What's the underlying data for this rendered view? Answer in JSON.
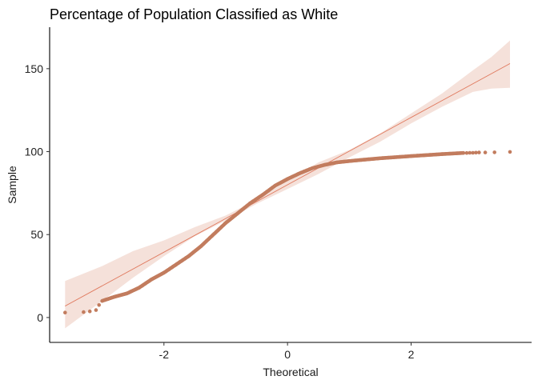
{
  "chart_data": {
    "type": "scatter",
    "title": "Percentage of Population Classified as White",
    "xlabel": "Theoretical",
    "ylabel": "Sample",
    "xlim": [
      -3.85,
      3.95
    ],
    "ylim": [
      -15,
      175
    ],
    "x_ticks": [
      -2,
      0,
      2
    ],
    "x_tick_labels": [
      "-2",
      "0",
      "2"
    ],
    "y_ticks": [
      0,
      50,
      100,
      150
    ],
    "y_tick_labels": [
      "0",
      "50",
      "100",
      "150"
    ],
    "grid": false,
    "legend": "none",
    "point_color": "#C27C5E",
    "line_color": "#E07A5F",
    "band_color": "#F5E1DA",
    "reference_line": {
      "intercept": 80,
      "slope": 20.3
    },
    "confidence_band": {
      "x": [
        -3.6,
        -3.0,
        -2.5,
        -2.0,
        -1.5,
        -1.0,
        -0.5,
        0.0,
        0.5,
        1.0,
        1.5,
        2.0,
        2.5,
        3.0,
        3.3,
        3.6
      ],
      "lower": [
        -6.5,
        10,
        24,
        37,
        49,
        58.5,
        68.5,
        77.5,
        86.5,
        96.5,
        106,
        117,
        127,
        136,
        138,
        138.5
      ],
      "upper": [
        22,
        31,
        40,
        46.5,
        54.5,
        61.5,
        71,
        82.5,
        93.5,
        101,
        111,
        123,
        135,
        149,
        157,
        167
      ]
    },
    "quantile_curve": {
      "x": [
        -3.0,
        -2.8,
        -2.6,
        -2.4,
        -2.2,
        -2.0,
        -1.8,
        -1.6,
        -1.4,
        -1.2,
        -1.0,
        -0.8,
        -0.6,
        -0.4,
        -0.2,
        0.0,
        0.2,
        0.4,
        0.6,
        0.8,
        1.0,
        1.2,
        1.5,
        2.0,
        2.5,
        2.85
      ],
      "y": [
        10,
        12.5,
        14.5,
        18,
        23,
        27,
        32,
        37,
        43,
        50,
        57,
        63,
        69,
        74,
        79.5,
        83.5,
        87,
        90,
        92,
        93.5,
        94.3,
        95,
        96,
        97.3,
        98.5,
        99.2
      ]
    },
    "tail_points": [
      {
        "x": -3.6,
        "y": 3
      },
      {
        "x": -3.3,
        "y": 3.3
      },
      {
        "x": -3.2,
        "y": 3.7
      },
      {
        "x": -3.1,
        "y": 4.5
      },
      {
        "x": -3.05,
        "y": 7.5
      },
      {
        "x": 2.9,
        "y": 99.2
      },
      {
        "x": 2.95,
        "y": 99.3
      },
      {
        "x": 3.0,
        "y": 99.3
      },
      {
        "x": 3.05,
        "y": 99.4
      },
      {
        "x": 3.1,
        "y": 99.5
      },
      {
        "x": 3.2,
        "y": 99.5
      },
      {
        "x": 3.35,
        "y": 99.6
      },
      {
        "x": 3.6,
        "y": 99.8
      }
    ]
  }
}
